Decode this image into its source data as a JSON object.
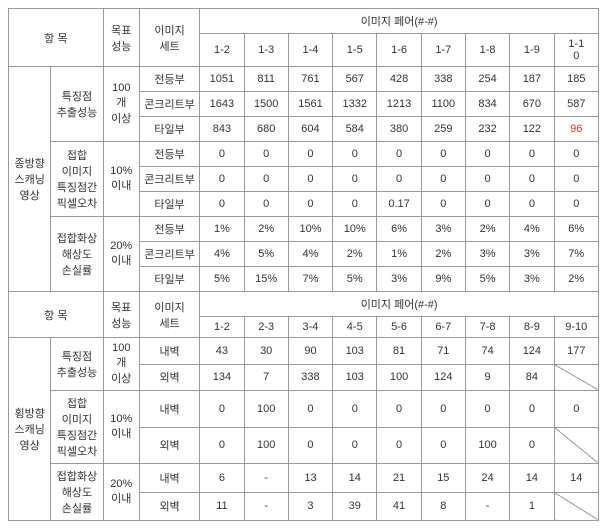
{
  "header": {
    "item": "항 목",
    "goal": "목표\n성능",
    "imageSet": "이미지\n세트",
    "imagePair": "이미지 페어(#-#)"
  },
  "pairs1": [
    "1-2",
    "1-3",
    "1-4",
    "1-5",
    "1-6",
    "1-7",
    "1-8",
    "1-9",
    "1-1\n0"
  ],
  "pairs2": [
    "1-2",
    "2-3",
    "3-4",
    "4-5",
    "5-6",
    "6-7",
    "7-8",
    "8-9",
    "9-10"
  ],
  "blockA": {
    "title": "종방향\n스캐닝\n영상",
    "groups": [
      {
        "label": "특징점\n추출성능",
        "goal": "100\n개\n이상",
        "rows": [
          {
            "set": "전등부",
            "v": [
              "1051",
              "811",
              "761",
              "567",
              "428",
              "338",
              "254",
              "187",
              "185"
            ]
          },
          {
            "set": "콘크리트부",
            "v": [
              "1643",
              "1500",
              "1561",
              "1332",
              "1213",
              "1100",
              "834",
              "670",
              "587"
            ]
          },
          {
            "set": "타일부",
            "v": [
              "843",
              "680",
              "604",
              "584",
              "380",
              "259",
              "232",
              "122",
              "96"
            ],
            "red": [
              8
            ]
          }
        ]
      },
      {
        "label": "접합\n이미지\n특징점간\n픽셀오차",
        "goal": "10%\n이내",
        "rows": [
          {
            "set": "전등부",
            "v": [
              "0",
              "0",
              "0",
              "0",
              "0",
              "0",
              "0",
              "0",
              "0"
            ]
          },
          {
            "set": "콘크리트부",
            "v": [
              "0",
              "0",
              "0",
              "0",
              "0",
              "0",
              "0",
              "0",
              "0"
            ]
          },
          {
            "set": "타일부",
            "v": [
              "0",
              "0",
              "0",
              "0",
              "0.17",
              "0",
              "0",
              "0",
              "0"
            ]
          }
        ]
      },
      {
        "label": "접합화상\n해상도\n손실률",
        "goal": "20%\n이내",
        "rows": [
          {
            "set": "전등부",
            "v": [
              "1%",
              "2%",
              "10%",
              "10%",
              "6%",
              "3%",
              "2%",
              "4%",
              "6%"
            ]
          },
          {
            "set": "콘크리트부",
            "v": [
              "4%",
              "5%",
              "4%",
              "2%",
              "1%",
              "2%",
              "3%",
              "3%",
              "7%"
            ]
          },
          {
            "set": "타일부",
            "v": [
              "5%",
              "15%",
              "7%",
              "5%",
              "3%",
              "9%",
              "5%",
              "3%",
              "2%"
            ]
          }
        ]
      }
    ]
  },
  "blockB": {
    "title": "횡방향\n스캐닝\n영상",
    "groups": [
      {
        "label": "특징점\n추출성능",
        "goal": "100\n개\n이상",
        "rows": [
          {
            "set": "내벽",
            "v": [
              "43",
              "30",
              "90",
              "103",
              "81",
              "71",
              "74",
              "124",
              "177"
            ]
          },
          {
            "set": "외벽",
            "v": [
              "134",
              "7",
              "338",
              "103",
              "100",
              "124",
              "9",
              "84",
              ""
            ],
            "diag": [
              8
            ]
          }
        ]
      },
      {
        "label": "접합\n이미지\n특징점간\n픽셀오차",
        "goal": "10%\n이내",
        "rows": [
          {
            "set": "내벽",
            "v": [
              "0",
              "100",
              "0",
              "0",
              "0",
              "0",
              "0",
              "0",
              "0"
            ]
          },
          {
            "set": "외벽",
            "v": [
              "0",
              "100",
              "0",
              "0",
              "0",
              "0",
              "100",
              "0",
              ""
            ],
            "diag": [
              8
            ]
          }
        ]
      },
      {
        "label": "접합화상\n해상도\n손실률",
        "goal": "20%\n이내",
        "rows": [
          {
            "set": "내벽",
            "v": [
              "6",
              "-",
              "13",
              "14",
              "21",
              "15",
              "24",
              "14",
              "14"
            ]
          },
          {
            "set": "외벽",
            "v": [
              "11",
              "-",
              "3",
              "39",
              "41",
              "8",
              "-",
              "1",
              ""
            ],
            "diag": [
              8
            ]
          }
        ]
      }
    ]
  }
}
